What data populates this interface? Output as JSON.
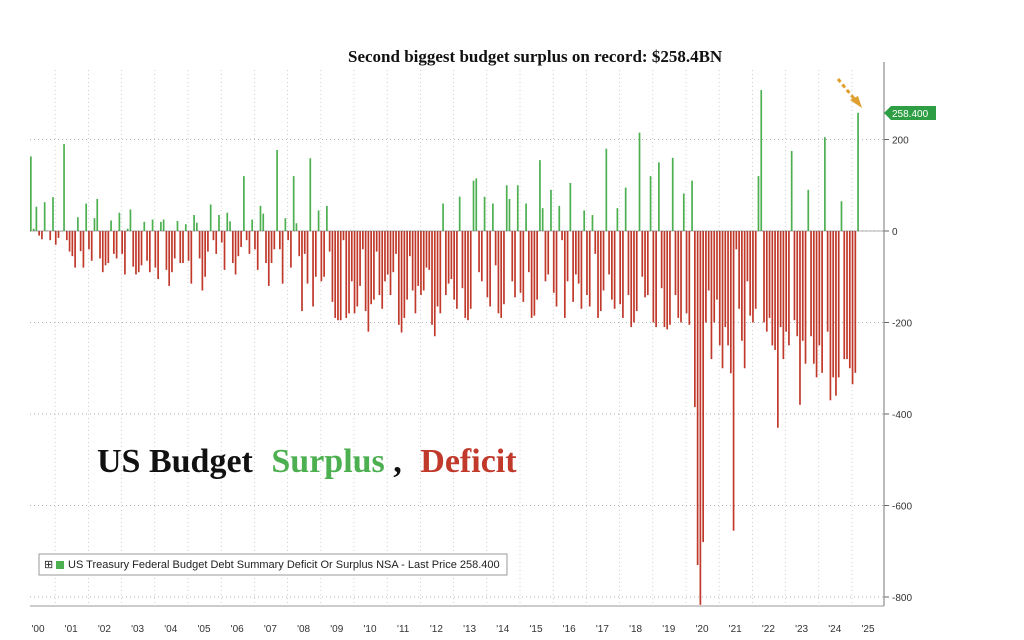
{
  "colors": {
    "surplus": "#4caf50",
    "deficit": "#c0392b",
    "title_black": "#111111",
    "price_tag": "#2e9e45",
    "arrow": "#e0a030"
  },
  "annotation": "Second biggest budget surplus on record: $258.4BN",
  "title": {
    "part1": "US Budget",
    "part2": "Surplus",
    "comma": ",",
    "part3": "Deficit"
  },
  "legend": {
    "marker": "⊞",
    "text": "US Treasury Federal Budget Debt Summary Deficit Or Surplus NSA - Last Price 258.400"
  },
  "price_tag": "258.400",
  "chart_data": {
    "type": "bar",
    "title": "US Budget Surplus, Deficit",
    "ylim": [
      -820,
      370
    ],
    "y_ticks": [
      "200",
      "0",
      "-200",
      "-400",
      "-600",
      "-800"
    ],
    "y_tick_values": [
      200,
      0,
      -200,
      -400,
      -600,
      -800
    ],
    "grid": true,
    "legend_position": "bottom-left",
    "x_tick_labels": [
      "'00",
      "'01",
      "'02",
      "'03",
      "'04",
      "'05",
      "'06",
      "'07",
      "'08",
      "'09",
      "'10",
      "'11",
      "'12",
      "'13",
      "'14",
      "'15",
      "'16",
      "'17",
      "'18",
      "'19",
      "'20",
      "'21",
      "'22",
      "'23",
      "'24",
      "'25"
    ],
    "series": [
      {
        "name": "US Treasury Federal Budget Debt Summary Deficit Or Surplus NSA",
        "years": [
          {
            "year": 2000,
            "values": [
              163,
              5,
              53,
              -10,
              -18,
              63,
              1,
              -20,
              74,
              -30,
              -15,
              0
            ]
          },
          {
            "year": 2001,
            "values": [
              190,
              -20,
              -45,
              -55,
              -80,
              30,
              -44,
              -80,
              60,
              -40,
              -65,
              28
            ]
          },
          {
            "year": 2002,
            "values": [
              70,
              -60,
              -90,
              -75,
              -70,
              23,
              -50,
              -60,
              40,
              -50,
              -95,
              5
            ]
          },
          {
            "year": 2003,
            "values": [
              47,
              -78,
              -95,
              -90,
              -75,
              20,
              -65,
              -90,
              25,
              -80,
              -105,
              20
            ]
          },
          {
            "year": 2004,
            "values": [
              25,
              -85,
              -120,
              -90,
              -60,
              22,
              -70,
              -70,
              15,
              -65,
              -115,
              35
            ]
          },
          {
            "year": 2005,
            "values": [
              18,
              -60,
              -130,
              -100,
              -45,
              58,
              -20,
              -50,
              35,
              -25,
              -85,
              40
            ]
          },
          {
            "year": 2006,
            "values": [
              21,
              -70,
              -95,
              -55,
              -35,
              120,
              -20,
              -50,
              25,
              -40,
              -85,
              55
            ]
          },
          {
            "year": 2007,
            "values": [
              38,
              -70,
              -120,
              -70,
              -40,
              177,
              -40,
              -115,
              28,
              -20,
              -80,
              120
            ]
          },
          {
            "year": 2008,
            "values": [
              17,
              -55,
              -175,
              -50,
              -115,
              159,
              -165,
              -100,
              45,
              -110,
              -100,
              55
            ]
          },
          {
            "year": 2009,
            "values": [
              -45,
              -155,
              -190,
              -195,
              -195,
              -20,
              -190,
              -180,
              -110,
              -180,
              -165,
              -120
            ]
          },
          {
            "year": 2010,
            "values": [
              -40,
              -175,
              -220,
              -160,
              -150,
              -45,
              -140,
              -170,
              -110,
              -95,
              -140,
              -90
            ]
          },
          {
            "year": 2011,
            "values": [
              -50,
              -205,
              -222,
              -190,
              -150,
              -55,
              -130,
              -180,
              -120,
              -140,
              -130,
              -80
            ]
          },
          {
            "year": 2012,
            "values": [
              -85,
              -205,
              -230,
              -165,
              -180,
              60,
              -140,
              -115,
              -105,
              -150,
              -170,
              75
            ]
          },
          {
            "year": 2013,
            "values": [
              -125,
              -190,
              -195,
              -170,
              110,
              115,
              -90,
              -110,
              75,
              -145,
              -165,
              60
            ]
          },
          {
            "year": 2014,
            "values": [
              -75,
              -180,
              -190,
              -160,
              100,
              70,
              -110,
              -145,
              100,
              -135,
              -155,
              60
            ]
          },
          {
            "year": 2015,
            "values": [
              -90,
              -190,
              -185,
              -150,
              155,
              50,
              -110,
              -95,
              90,
              -135,
              -165,
              55
            ]
          },
          {
            "year": 2016,
            "values": [
              -20,
              -190,
              -110,
              105,
              -155,
              -95,
              -115,
              -170,
              45,
              -140,
              -165,
              35
            ]
          },
          {
            "year": 2017,
            "values": [
              -50,
              -190,
              -175,
              -130,
              180,
              -95,
              -150,
              -170,
              50,
              -160,
              -190,
              95
            ]
          },
          {
            "year": 2018,
            "values": [
              -140,
              -210,
              -200,
              -175,
              215,
              -100,
              -145,
              -140,
              120,
              -200,
              -210,
              150
            ]
          },
          {
            "year": 2019,
            "values": [
              -125,
              -210,
              -215,
              -205,
              160,
              -140,
              -190,
              -200,
              82,
              -180,
              -205,
              110
            ]
          },
          {
            "year": 2020,
            "values": [
              -385,
              -730,
              -817,
              -680,
              -200,
              -130,
              -280,
              -200,
              -150,
              -250,
              -300,
              -210
            ]
          },
          {
            "year": 2021,
            "values": [
              -250,
              -311,
              -655,
              -40,
              -170,
              -240,
              -300,
              -110,
              -185,
              -200,
              -170,
              120
            ]
          },
          {
            "year": 2022,
            "values": [
              308,
              -200,
              -220,
              -190,
              -250,
              -260,
              -430,
              -210,
              -280,
              -220,
              -250,
              175
            ]
          },
          {
            "year": 2023,
            "values": [
              -195,
              -230,
              -380,
              -240,
              -290,
              90,
              -230,
              -290,
              -320,
              -250,
              -310,
              205
            ]
          },
          {
            "year": 2024,
            "values": [
              -220,
              -370,
              -320,
              -360,
              -320,
              65,
              -280,
              -280,
              -300,
              -335,
              -310,
              258.4
            ]
          }
        ]
      }
    ],
    "last_value": 258.4
  }
}
